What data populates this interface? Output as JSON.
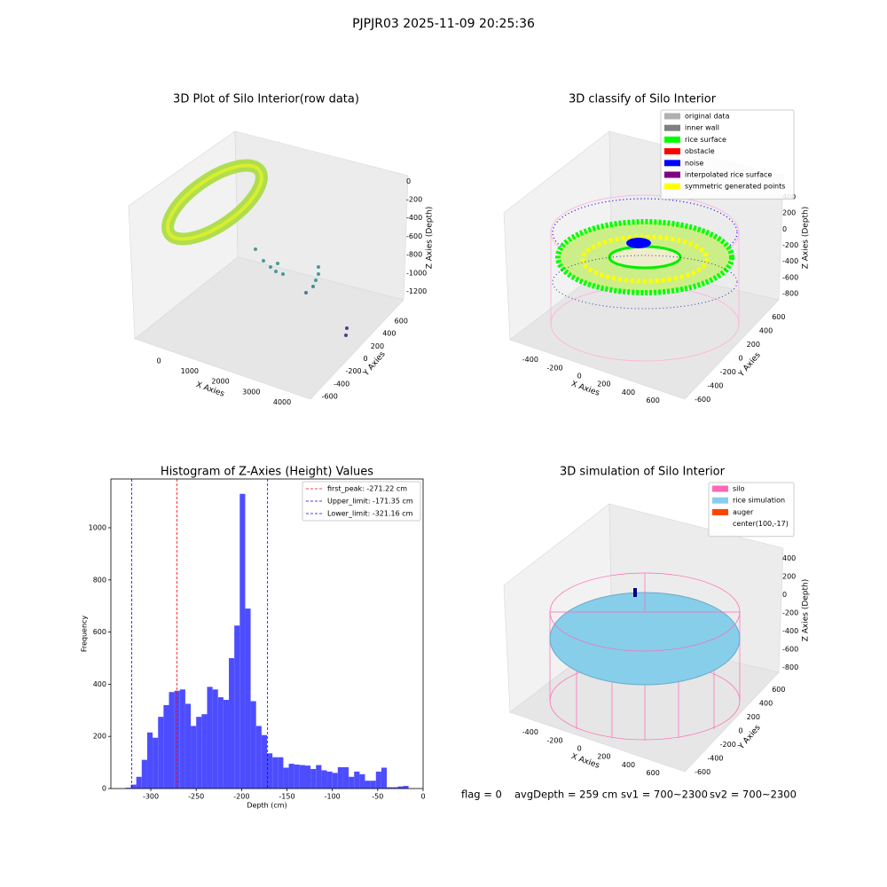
{
  "title": "PJPJR03 2025-11-09 20:25:36",
  "status": [
    "flag = 0",
    "avgDepth = 259 cm",
    "sv1 = 700~2300",
    "sv2 = 700~2300"
  ],
  "chart_data": [
    {
      "type": "scatter3d",
      "title": "3D Plot of Silo Interior(row data)",
      "xlabel": "X Axies",
      "ylabel": "Y Axies",
      "zlabel": "Z Axies (Depth)",
      "xlim": [
        -780,
        4920
      ],
      "xticks": [
        0,
        1000,
        2000,
        3000,
        4000
      ],
      "ylim": [
        -700,
        700
      ],
      "yticks": [
        -600,
        -400,
        -200,
        0,
        200,
        400,
        600
      ],
      "zlim": [
        -1350,
        100
      ],
      "zticks": [
        0,
        -200,
        -400,
        -600,
        -800,
        -1000,
        -1200
      ]
    },
    {
      "type": "scatter3d",
      "title": "3D classify of Silo Interior",
      "xlabel": "X Axies",
      "ylabel": "Y Axies",
      "zlabel": "Z Axies (Depth)",
      "xlim": [
        -500,
        700
      ],
      "xticks": [
        -400,
        -200,
        0,
        200,
        400,
        600
      ],
      "ylim": [
        -700,
        700
      ],
      "yticks": [
        -600,
        -400,
        -200,
        0,
        200,
        400,
        600
      ],
      "zlim": [
        -900,
        500
      ],
      "zticks": [
        400,
        200,
        0,
        -200,
        -400,
        -600,
        -800
      ],
      "legend": [
        {
          "name": "original data",
          "color": "#b0b0b0"
        },
        {
          "name": "inner wall",
          "color": "#808080"
        },
        {
          "name": "rice surface",
          "color": "#00ff00"
        },
        {
          "name": "obstacle",
          "color": "#ff0000"
        },
        {
          "name": "noise",
          "color": "#0000ff"
        },
        {
          "name": "interpolated rice surface",
          "color": "#800080"
        },
        {
          "name": "symmetric generated points",
          "color": "#ffff00"
        }
      ]
    },
    {
      "type": "histogram",
      "title": "Histogram of Z-Axies (Height) Values",
      "xlabel": "Depth (cm)",
      "ylabel": "Frequency",
      "color": "#4d4dff",
      "bins": [
        -328,
        -322,
        -316,
        -310,
        -304,
        -298,
        -292,
        -286,
        -280,
        -274,
        -268,
        -262,
        -256,
        -250,
        -244,
        -238,
        -232,
        -226,
        -220,
        -214,
        -208,
        -202,
        -196,
        -190,
        -184,
        -178,
        -172,
        -166,
        -160,
        -154,
        -148,
        -142,
        -136,
        -130,
        -124,
        -118,
        -112,
        -106,
        -100,
        -94,
        -88,
        -82,
        -76,
        -70,
        -64,
        -58,
        -52,
        -46,
        -40,
        -34,
        -28,
        -22,
        -16
      ],
      "values": [
        3,
        15,
        45,
        110,
        215,
        195,
        275,
        320,
        370,
        375,
        380,
        325,
        240,
        275,
        285,
        390,
        380,
        350,
        340,
        500,
        625,
        1130,
        690,
        335,
        240,
        205,
        135,
        120,
        120,
        80,
        95,
        92,
        90,
        88,
        75,
        90,
        70,
        65,
        60,
        82,
        82,
        45,
        65,
        55,
        30,
        30,
        65,
        80,
        5,
        5,
        8,
        10
      ],
      "xlim": [
        -344,
        0
      ],
      "xticks": [
        -300,
        -250,
        -200,
        -150,
        -100,
        -50,
        0
      ],
      "ylim": [
        0,
        1187
      ],
      "yticks": [
        0,
        200,
        400,
        600,
        800,
        1000
      ],
      "lines": [
        {
          "name": "first_peak: -271.22 cm",
          "value": -271.22,
          "color": "#ff0000"
        },
        {
          "name": "Upper_limit: -171.35 cm",
          "value": -171.35,
          "color": "#0000ff"
        },
        {
          "name": "Lower_limit: -321.16 cm",
          "value": -321.16,
          "color": "#0000ff"
        }
      ]
    },
    {
      "type": "surface3d",
      "title": "3D simulation of Silo Interior",
      "xlabel": "X Axies",
      "ylabel": "Y Axies",
      "zlabel": "Z Axies (Depth)",
      "xlim": [
        -500,
        700
      ],
      "xticks": [
        -400,
        -200,
        0,
        200,
        400,
        600
      ],
      "ylim": [
        -700,
        700
      ],
      "yticks": [
        -600,
        -400,
        -200,
        0,
        200,
        400,
        600
      ],
      "zlim": [
        -900,
        500
      ],
      "zticks": [
        400,
        200,
        0,
        -200,
        -400,
        -600,
        -800
      ],
      "legend": [
        {
          "name": "silo",
          "color": "#ff69b4"
        },
        {
          "name": "rice simulation",
          "color": "#87ceeb"
        },
        {
          "name": "auger",
          "color": "#ff4500"
        },
        {
          "name": "center(100,-17)",
          "color": null
        }
      ]
    }
  ]
}
